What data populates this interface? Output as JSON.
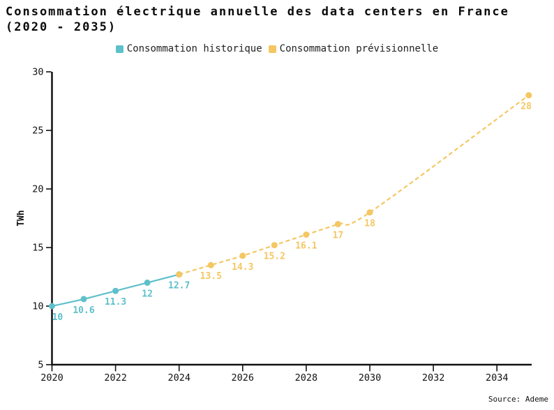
{
  "page": {
    "title_line1": "Consommation électrique annuelle des data centers en France",
    "title_line2": "(2020 - 2035)",
    "source": "Source: Ademe"
  },
  "chart_data": {
    "type": "line",
    "title": "Consommation électrique annuelle des data centers en France (2020 - 2035)",
    "xlabel": "",
    "ylabel": "TWh",
    "legend_position": "top",
    "grid": false,
    "xlim": [
      2020,
      2035.1
    ],
    "ylim": [
      5,
      30
    ],
    "x_ticks": [
      2020,
      2022,
      2024,
      2026,
      2028,
      2030,
      2032,
      2034
    ],
    "y_ticks": [
      5,
      10,
      15,
      20,
      25,
      30
    ],
    "axis_color": "#111111",
    "series": [
      {
        "name": "Consommation historique",
        "color": "#5EC0CA",
        "line_style": "solid",
        "x": [
          2020,
          2021,
          2022,
          2023,
          2024
        ],
        "values": [
          10,
          10.6,
          11.3,
          12,
          12.7
        ],
        "point_labels": [
          "10",
          "10.6",
          "11.3",
          "12",
          "12.7"
        ]
      },
      {
        "name": "Consommation prévisionnelle",
        "color": "#F4C763",
        "line_style": "dashed",
        "x": [
          2024,
          2025,
          2026,
          2027,
          2028,
          2029,
          2030,
          2035
        ],
        "values": [
          12.7,
          13.5,
          14.3,
          15.2,
          16.1,
          17,
          18,
          28
        ],
        "point_labels": [
          "",
          "13.5",
          "14.3",
          "15.2",
          "16.1",
          "17",
          "18",
          "28"
        ]
      }
    ]
  }
}
